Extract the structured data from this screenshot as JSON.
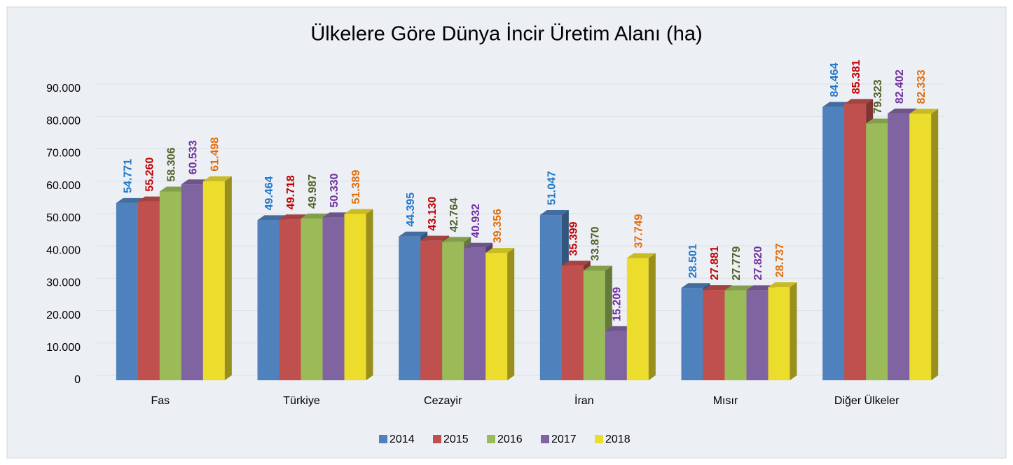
{
  "chart_data": {
    "type": "bar",
    "title": "Ülkelere Göre Dünya İncir Üretim Alanı (ha)",
    "categories": [
      "Fas",
      "Türkiye",
      "Cezayir",
      "İran",
      "Mısır",
      "Diğer Ülkeler"
    ],
    "series": [
      {
        "name": "2014",
        "color": "#4f81bd",
        "label_color": "#1f77c9",
        "values": [
          54771,
          49464,
          44395,
          51047,
          28501,
          84464
        ],
        "value_labels": [
          "54.771",
          "49.464",
          "44.395",
          "51.047",
          "28.501",
          "84.464"
        ]
      },
      {
        "name": "2015",
        "color": "#c0504d",
        "label_color": "#c00000",
        "values": [
          55260,
          49718,
          43130,
          35399,
          27881,
          85381
        ],
        "value_labels": [
          "55.260",
          "49.718",
          "43.130",
          "35.399",
          "27.881",
          "85.381"
        ]
      },
      {
        "name": "2016",
        "color": "#9bbb59",
        "label_color": "#4f6228",
        "values": [
          58306,
          49987,
          42764,
          33870,
          27779,
          79323
        ],
        "value_labels": [
          "58.306",
          "49.987",
          "42.764",
          "33.870",
          "27.779",
          "79.323"
        ]
      },
      {
        "name": "2017",
        "color": "#8064a2",
        "label_color": "#7030a0",
        "values": [
          60533,
          50330,
          40932,
          15209,
          27820,
          82402
        ],
        "value_labels": [
          "60.533",
          "50.330",
          "40.932",
          "15.209",
          "27.820",
          "82.402"
        ]
      },
      {
        "name": "2018",
        "color": "#ecdc2c",
        "label_color": "#e36c0a",
        "values": [
          61498,
          51389,
          39356,
          37749,
          28737,
          82333
        ],
        "value_labels": [
          "61.498",
          "51.389",
          "39.356",
          "37.749",
          "28.737",
          "82.333"
        ]
      }
    ],
    "ylim": [
      0,
      90000
    ],
    "yticks": [
      0,
      {
        "value": 10000,
        "label": "10.000"
      },
      {
        "value": 20000,
        "label": "20.000"
      },
      {
        "value": 30000,
        "label": "30.000"
      },
      {
        "value": 40000,
        "label": "40.000"
      },
      {
        "value": 50000,
        "label": "50.000"
      },
      {
        "value": 60000,
        "label": "60.000"
      },
      {
        "value": 70000,
        "label": "70.000"
      },
      {
        "value": 80000,
        "label": "80.000"
      },
      {
        "value": 90000,
        "label": "90.000"
      }
    ],
    "grid": true,
    "legend": "bottom"
  }
}
